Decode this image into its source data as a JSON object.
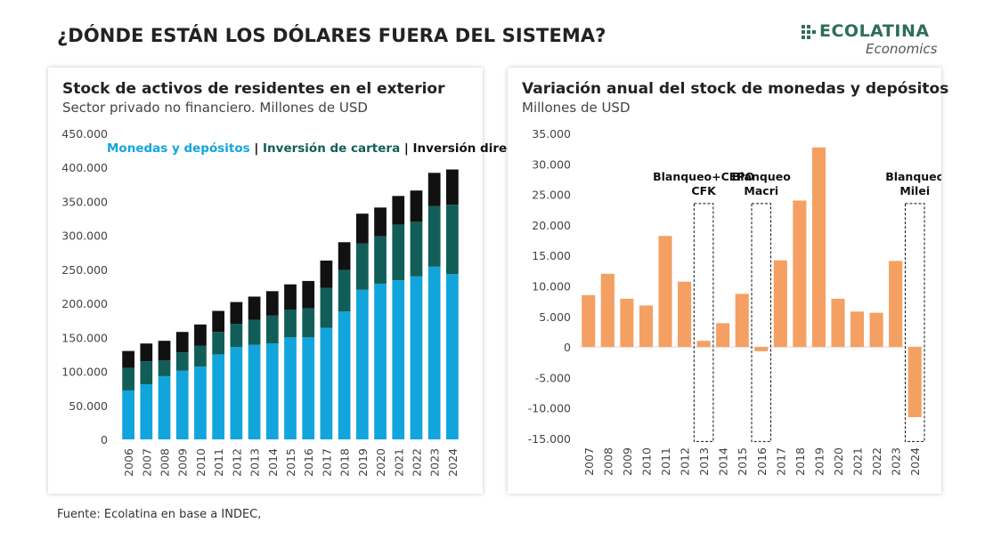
{
  "page": {
    "title": "¿DÓNDE ESTÁN LOS DÓLARES FUERA DEL SISTEMA?",
    "source": "Fuente: Ecolatina en base a INDEC,"
  },
  "logo": {
    "name": "ECOLATINA",
    "subtitle": "Economics"
  },
  "colors": {
    "monedas": "#12a5dc",
    "cartera": "#115e58",
    "directa": "#111111",
    "variacion": "#f4a063",
    "logo": "#2d6e5a"
  },
  "chart_data": [
    {
      "type": "bar",
      "stacked": true,
      "title": "Stock de activos de residentes en el exterior",
      "subtitle": "Sector privado no financiero. Millones de USD",
      "legend": {
        "items": [
          "Monedas y depósitos",
          "Inversión de cartera",
          "Inversión directa"
        ],
        "separator": " | "
      },
      "categories": [
        "2006",
        "2007",
        "2008",
        "2009",
        "2010",
        "2011",
        "2012",
        "2013",
        "2014",
        "2015",
        "2016",
        "2017",
        "2018",
        "2019",
        "2020",
        "2021",
        "2022",
        "2023",
        "2024"
      ],
      "series": [
        {
          "name": "Monedas y depósitos",
          "values": [
            72000,
            81000,
            93000,
            101000,
            107000,
            125000,
            136000,
            139000,
            141000,
            150000,
            150000,
            164000,
            188000,
            220000,
            229000,
            234000,
            240000,
            254000,
            243000
          ]
        },
        {
          "name": "Inversión de cartera",
          "values": [
            33000,
            34000,
            23000,
            27000,
            31000,
            33000,
            34000,
            37000,
            41000,
            41000,
            43000,
            59000,
            61000,
            68000,
            70000,
            82000,
            80000,
            89000,
            102000
          ]
        },
        {
          "name": "Inversión directa",
          "values": [
            25000,
            26000,
            29000,
            30000,
            31000,
            31000,
            32000,
            34000,
            36000,
            37000,
            40000,
            40000,
            41000,
            44000,
            42000,
            42000,
            46000,
            49000,
            52000
          ]
        }
      ],
      "ylim": [
        0,
        450000
      ],
      "yticks": [
        0,
        50000,
        100000,
        150000,
        200000,
        250000,
        300000,
        350000,
        400000,
        450000
      ],
      "ytick_labels": [
        "0",
        "50.000",
        "100.000",
        "150.000",
        "200.000",
        "250.000",
        "300.000",
        "350.000",
        "400.000",
        "450.000"
      ]
    },
    {
      "type": "bar",
      "title": "Variación anual del stock de monedas y depósitos",
      "subtitle": "Millones de USD",
      "categories": [
        "2007",
        "2008",
        "2009",
        "2010",
        "2011",
        "2012",
        "2013",
        "2014",
        "2015",
        "2016",
        "2017",
        "2018",
        "2019",
        "2020",
        "2021",
        "2022",
        "2023",
        "2024"
      ],
      "values": [
        8500,
        12000,
        7900,
        6800,
        18200,
        10700,
        1000,
        3900,
        8700,
        -700,
        14200,
        24000,
        32700,
        7900,
        5800,
        5600,
        14100,
        -11500
      ],
      "ylim": [
        -15000,
        35000
      ],
      "yticks": [
        -15000,
        -10000,
        -5000,
        0,
        5000,
        10000,
        15000,
        20000,
        25000,
        30000,
        35000
      ],
      "ytick_labels": [
        "-15.000",
        "-10.000",
        "-5.000",
        "0",
        "5.000",
        "10.000",
        "15.000",
        "20.000",
        "25.000",
        "30.000",
        "35.000"
      ],
      "annotations": [
        {
          "category": "2013",
          "lines": [
            "Blanqueo+CEPO",
            "CFK"
          ]
        },
        {
          "category": "2016",
          "lines": [
            "Blanqueo",
            "Macri"
          ]
        },
        {
          "category": "2024",
          "lines": [
            "Blanqueo",
            "Milei"
          ]
        }
      ]
    }
  ]
}
